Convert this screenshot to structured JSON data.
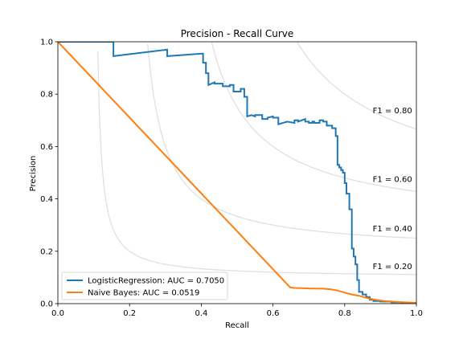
{
  "chart_data": {
    "type": "line",
    "title": "Precision - Recall Curve",
    "xlabel": "Recall",
    "ylabel": "Precision",
    "xlim": [
      0,
      1
    ],
    "ylim": [
      0,
      1
    ],
    "xticks": [
      "0.0",
      "0.2",
      "0.4",
      "0.6",
      "0.8",
      "1.0"
    ],
    "yticks": [
      "0.0",
      "0.2",
      "0.4",
      "0.6",
      "0.8",
      "1.0"
    ],
    "grid": false,
    "legend_position": "lower-left",
    "iso_f1": [
      {
        "f1": 0.2,
        "label": "F1 = 0.20",
        "label_y": 0.143
      },
      {
        "f1": 0.4,
        "label": "F1 = 0.40",
        "label_y": 0.287
      },
      {
        "f1": 0.6,
        "label": "F1 = 0.60",
        "label_y": 0.476
      },
      {
        "f1": 0.8,
        "label": "F1 = 0.80",
        "label_y": 0.737
      }
    ],
    "iso_color": "#e0e0e0",
    "series": [
      {
        "name": "LogisticRegression: AUC = 0.7050",
        "color": "#1f77b4",
        "step": true,
        "x": [
          0.0,
          0.155,
          0.155,
          0.305,
          0.305,
          0.405,
          0.405,
          0.413,
          0.413,
          0.42,
          0.42,
          0.437,
          0.437,
          0.46,
          0.46,
          0.48,
          0.48,
          0.49,
          0.49,
          0.51,
          0.51,
          0.52,
          0.52,
          0.528,
          0.528,
          0.54,
          0.54,
          0.55,
          0.55,
          0.57,
          0.57,
          0.585,
          0.585,
          0.6,
          0.6,
          0.615,
          0.615,
          0.64,
          0.64,
          0.66,
          0.66,
          0.67,
          0.67,
          0.69,
          0.69,
          0.7,
          0.7,
          0.71,
          0.71,
          0.715,
          0.715,
          0.73,
          0.73,
          0.74,
          0.74,
          0.75,
          0.75,
          0.765,
          0.765,
          0.775,
          0.775,
          0.78,
          0.78,
          0.785,
          0.785,
          0.79,
          0.79,
          0.795,
          0.795,
          0.8,
          0.8,
          0.805,
          0.805,
          0.813,
          0.813,
          0.82,
          0.82,
          0.825,
          0.825,
          0.83,
          0.83,
          0.835,
          0.835,
          0.84,
          0.84,
          0.85,
          0.85,
          0.86,
          0.86,
          0.87,
          0.87,
          0.88,
          0.88,
          0.9,
          0.9,
          0.93,
          0.93,
          0.96,
          0.96,
          1.0
        ],
        "y": [
          1.0,
          1.0,
          0.945,
          0.97,
          0.945,
          0.955,
          0.92,
          0.92,
          0.88,
          0.88,
          0.835,
          0.845,
          0.84,
          0.84,
          0.83,
          0.83,
          0.835,
          0.835,
          0.81,
          0.81,
          0.82,
          0.82,
          0.79,
          0.79,
          0.715,
          0.72,
          0.72,
          0.715,
          0.72,
          0.72,
          0.705,
          0.705,
          0.71,
          0.715,
          0.71,
          0.71,
          0.685,
          0.695,
          0.695,
          0.69,
          0.7,
          0.7,
          0.695,
          0.705,
          0.695,
          0.695,
          0.69,
          0.69,
          0.695,
          0.695,
          0.69,
          0.69,
          0.7,
          0.7,
          0.695,
          0.695,
          0.68,
          0.68,
          0.67,
          0.67,
          0.64,
          0.64,
          0.53,
          0.53,
          0.52,
          0.52,
          0.51,
          0.51,
          0.5,
          0.5,
          0.46,
          0.46,
          0.42,
          0.42,
          0.36,
          0.36,
          0.21,
          0.21,
          0.18,
          0.18,
          0.15,
          0.15,
          0.09,
          0.09,
          0.045,
          0.045,
          0.035,
          0.035,
          0.025,
          0.025,
          0.015,
          0.015,
          0.01,
          0.01,
          0.008,
          0.008,
          0.005,
          0.005,
          0.002,
          0.002
        ]
      },
      {
        "name": "Naive Bayes: AUC = 0.0519",
        "color": "#ff7f0e",
        "step": false,
        "x": [
          0.0,
          0.648,
          0.66,
          0.7,
          0.74,
          0.76,
          0.78,
          0.8,
          0.82,
          0.84,
          0.86,
          0.88,
          0.9,
          0.92,
          0.95,
          1.0
        ],
        "y": [
          1.0,
          0.062,
          0.06,
          0.058,
          0.057,
          0.055,
          0.05,
          0.042,
          0.035,
          0.03,
          0.022,
          0.016,
          0.012,
          0.009,
          0.006,
          0.003
        ]
      }
    ]
  }
}
